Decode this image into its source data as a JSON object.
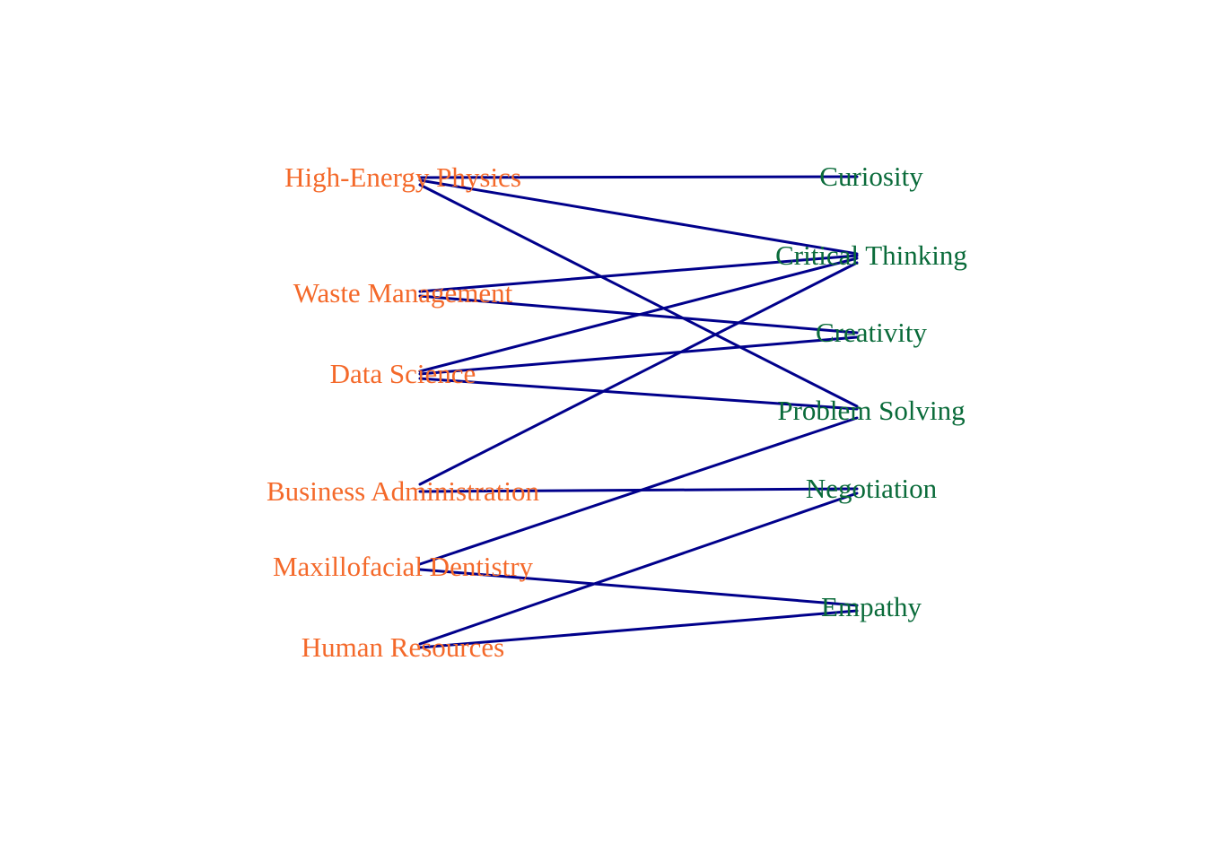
{
  "diagram": {
    "type": "bipartite",
    "colors": {
      "left_label": "#f4692a",
      "right_label": "#0a6b3a",
      "edge": "#00008b",
      "background": "#ffffff"
    },
    "left_nodes": [
      {
        "id": "high-energy-physics",
        "label": "High-Energy Physics"
      },
      {
        "id": "waste-management",
        "label": "Waste Management"
      },
      {
        "id": "data-science",
        "label": "Data Science"
      },
      {
        "id": "business-administration",
        "label": "Business Administration"
      },
      {
        "id": "maxillofacial-dentistry",
        "label": "Maxillofacial Dentistry"
      },
      {
        "id": "human-resources",
        "label": "Human Resources"
      }
    ],
    "right_nodes": [
      {
        "id": "curiosity",
        "label": "Curiosity"
      },
      {
        "id": "critical-thinking",
        "label": "Critical Thinking"
      },
      {
        "id": "creativity",
        "label": "Creativity"
      },
      {
        "id": "problem-solving",
        "label": "Problem Solving"
      },
      {
        "id": "negotiation",
        "label": "Negotiation"
      },
      {
        "id": "empathy",
        "label": "Empathy"
      }
    ],
    "edges": [
      {
        "from": "high-energy-physics",
        "to": "curiosity"
      },
      {
        "from": "high-energy-physics",
        "to": "critical-thinking"
      },
      {
        "from": "high-energy-physics",
        "to": "problem-solving"
      },
      {
        "from": "waste-management",
        "to": "critical-thinking"
      },
      {
        "from": "waste-management",
        "to": "creativity"
      },
      {
        "from": "data-science",
        "to": "critical-thinking"
      },
      {
        "from": "data-science",
        "to": "creativity"
      },
      {
        "from": "data-science",
        "to": "problem-solving"
      },
      {
        "from": "business-administration",
        "to": "critical-thinking"
      },
      {
        "from": "business-administration",
        "to": "negotiation"
      },
      {
        "from": "maxillofacial-dentistry",
        "to": "problem-solving"
      },
      {
        "from": "maxillofacial-dentistry",
        "to": "empathy"
      },
      {
        "from": "human-resources",
        "to": "negotiation"
      },
      {
        "from": "human-resources",
        "to": "empathy"
      }
    ]
  }
}
